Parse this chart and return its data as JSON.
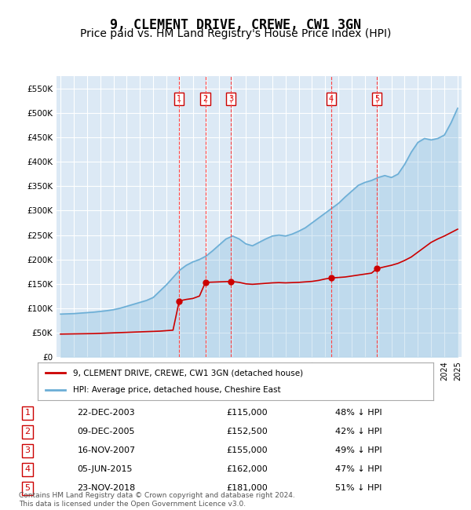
{
  "title": "9, CLEMENT DRIVE, CREWE, CW1 3GN",
  "subtitle": "Price paid vs. HM Land Registry's House Price Index (HPI)",
  "ylabel": "",
  "background_color": "#ffffff",
  "plot_bg_color": "#dce9f5",
  "grid_color": "#ffffff",
  "ylim": [
    0,
    575000
  ],
  "yticks": [
    0,
    50000,
    100000,
    150000,
    200000,
    250000,
    300000,
    350000,
    400000,
    450000,
    500000,
    550000
  ],
  "ytick_labels": [
    "£0",
    "£50K",
    "£100K",
    "£150K",
    "£200K",
    "£250K",
    "£300K",
    "£350K",
    "£400K",
    "£450K",
    "£500K",
    "£550K"
  ],
  "sale_dates_num": [
    2003.97,
    2005.94,
    2007.88,
    2015.43,
    2018.9
  ],
  "sale_prices": [
    115000,
    152500,
    155000,
    162000,
    181000
  ],
  "sale_labels": [
    "1",
    "2",
    "3",
    "4",
    "5"
  ],
  "sale_dates_str": [
    "22-DEC-2003",
    "09-DEC-2005",
    "16-NOV-2007",
    "05-JUN-2015",
    "23-NOV-2018"
  ],
  "sale_pct": [
    "48%",
    "42%",
    "49%",
    "47%",
    "51%"
  ],
  "hpi_years": [
    1995,
    1995.5,
    1996,
    1996.5,
    1997,
    1997.5,
    1998,
    1998.5,
    1999,
    1999.5,
    2000,
    2000.5,
    2001,
    2001.5,
    2002,
    2002.5,
    2003,
    2003.5,
    2004,
    2004.5,
    2005,
    2005.5,
    2006,
    2006.5,
    2007,
    2007.5,
    2008,
    2008.5,
    2009,
    2009.5,
    2010,
    2010.5,
    2011,
    2011.5,
    2012,
    2012.5,
    2013,
    2013.5,
    2014,
    2014.5,
    2015,
    2015.5,
    2016,
    2016.5,
    2017,
    2017.5,
    2018,
    2018.5,
    2019,
    2019.5,
    2020,
    2020.5,
    2021,
    2021.5,
    2022,
    2022.5,
    2023,
    2023.5,
    2024,
    2024.5,
    2025
  ],
  "hpi_values": [
    88000,
    88500,
    89000,
    90000,
    91000,
    92000,
    93500,
    95000,
    97000,
    100000,
    104000,
    108000,
    112000,
    116000,
    122000,
    135000,
    148000,
    163000,
    178000,
    188000,
    195000,
    200000,
    207000,
    218000,
    230000,
    242000,
    248000,
    242000,
    232000,
    228000,
    235000,
    242000,
    248000,
    250000,
    248000,
    252000,
    258000,
    265000,
    275000,
    285000,
    295000,
    305000,
    315000,
    328000,
    340000,
    352000,
    358000,
    362000,
    368000,
    372000,
    368000,
    375000,
    395000,
    420000,
    440000,
    448000,
    445000,
    448000,
    455000,
    480000,
    510000
  ],
  "price_line_years": [
    1995,
    1995.5,
    1996,
    1996.5,
    1997,
    1997.5,
    1998,
    1998.5,
    1999,
    1999.5,
    2000,
    2000.5,
    2001,
    2001.5,
    2002,
    2002.5,
    2003,
    2003.5,
    2003.97,
    2003.97,
    2004.5,
    2005,
    2005.5,
    2005.94,
    2005.94,
    2006,
    2006.5,
    2007,
    2007.5,
    2007.88,
    2007.88,
    2008.5,
    2009,
    2009.5,
    2010,
    2010.5,
    2011,
    2011.5,
    2012,
    2012.5,
    2013,
    2013.5,
    2014,
    2014.5,
    2015,
    2015.43,
    2015.43,
    2016,
    2016.5,
    2017,
    2017.5,
    2018,
    2018.5,
    2018.9,
    2018.9,
    2019.5,
    2020,
    2020.5,
    2021,
    2021.5,
    2022,
    2022.5,
    2023,
    2023.5,
    2024,
    2024.5,
    2025
  ],
  "price_line_values": [
    47000,
    47200,
    47400,
    47600,
    47800,
    48000,
    48500,
    49000,
    49500,
    50000,
    50500,
    51000,
    51500,
    52000,
    52500,
    53000,
    54000,
    55000,
    115000,
    115000,
    118000,
    120000,
    125000,
    152500,
    152500,
    153000,
    153500,
    154000,
    154500,
    155000,
    155000,
    153000,
    150000,
    149000,
    150000,
    151000,
    152000,
    152500,
    152000,
    152500,
    153000,
    154000,
    155000,
    157000,
    160000,
    162000,
    162000,
    163000,
    164000,
    166000,
    168000,
    170000,
    172000,
    181000,
    181000,
    185000,
    188000,
    192000,
    198000,
    205000,
    215000,
    225000,
    235000,
    242000,
    248000,
    255000,
    262000
  ],
  "legend_label_red": "9, CLEMENT DRIVE, CREWE, CW1 3GN (detached house)",
  "legend_label_blue": "HPI: Average price, detached house, Cheshire East",
  "footer": "Contains HM Land Registry data © Crown copyright and database right 2024.\nThis data is licensed under the Open Government Licence v3.0.",
  "red_color": "#cc0000",
  "blue_color": "#6baed6",
  "marker_color": "#cc0000",
  "vline_color": "#ff4444",
  "box_color": "#cc0000",
  "xtick_start": 1995,
  "xtick_end": 2025,
  "title_fontsize": 12,
  "subtitle_fontsize": 10
}
